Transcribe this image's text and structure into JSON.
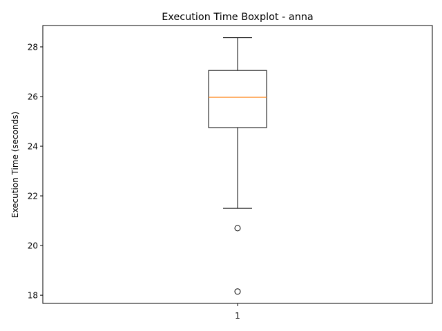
{
  "chart_data": {
    "type": "boxplot",
    "title": "Execution Time Boxplot - anna",
    "xlabel": "",
    "ylabel": "Execution Time (seconds)",
    "categories": [
      "1"
    ],
    "boxes": [
      {
        "category": "1",
        "whisker_low": 21.5,
        "q1": 24.75,
        "median": 25.97,
        "q3": 27.05,
        "whisker_high": 28.37,
        "outliers": [
          20.7,
          18.15
        ]
      }
    ],
    "ylim": [
      17.67,
      28.86
    ],
    "yticks": [
      18,
      20,
      22,
      24,
      26,
      28
    ],
    "grid": false,
    "colors": {
      "box": "#000000",
      "median": "#ff7f0e",
      "outlier": "#000000"
    }
  }
}
